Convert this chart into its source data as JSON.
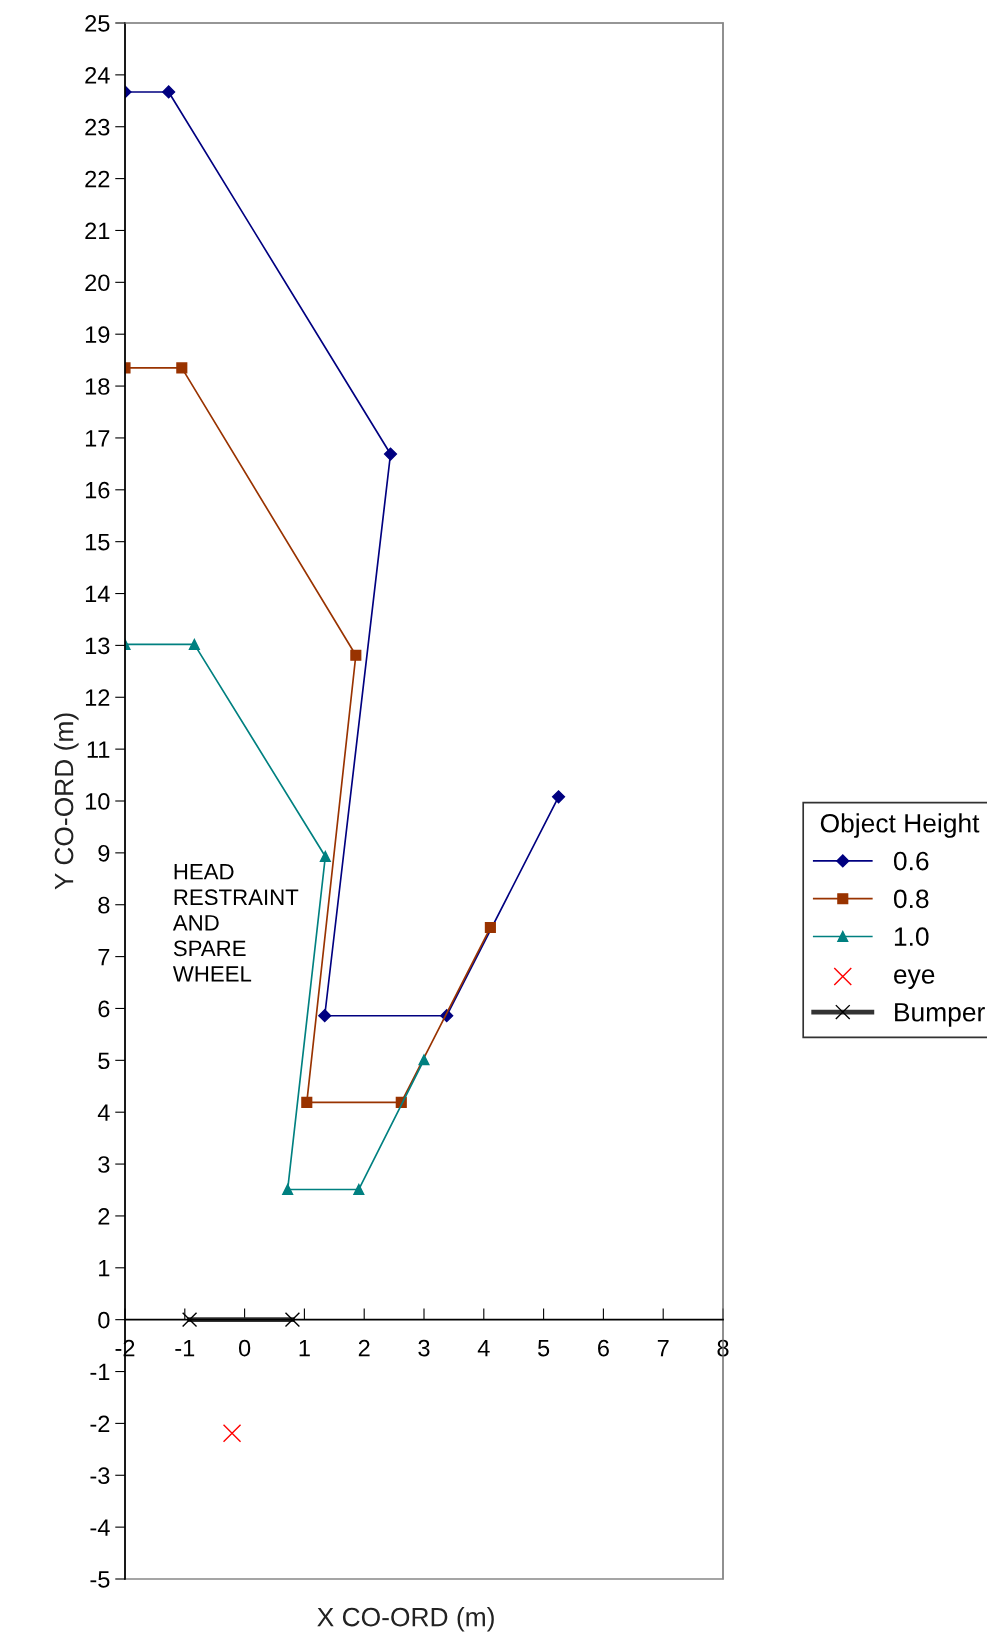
{
  "chart_data": {
    "type": "line",
    "xlabel": "X CO-ORD (m)",
    "ylabel": "Y CO-ORD (m)",
    "legend_title": "Object Height",
    "legend": "right",
    "xlim": [
      -2,
      8
    ],
    "xticks": [
      -2,
      -1,
      0,
      1,
      2,
      3,
      4,
      5,
      6,
      7,
      8
    ],
    "ylim": [
      -5,
      25
    ],
    "yticks": [
      -5,
      -4,
      -3,
      -2,
      -1,
      0,
      1,
      2,
      3,
      4,
      5,
      6,
      7,
      8,
      9,
      10,
      11,
      12,
      13,
      14,
      15,
      16,
      17,
      18,
      19,
      20,
      21,
      22,
      23,
      24,
      25
    ],
    "grid": false,
    "annotations": [
      "HEAD\nRESTRAINT\nAND\nSPARE\nWHEEL"
    ],
    "series": [
      {
        "name": "0.6",
        "color": "#000080",
        "marker": "diamond",
        "x": [
          -2,
          -1.27,
          2.44,
          1.34,
          3.38,
          5.25
        ],
        "values": [
          23.67,
          23.67,
          16.69,
          5.86,
          5.86,
          10.08
        ]
      },
      {
        "name": "0.8",
        "color": "#993300",
        "marker": "square",
        "x": [
          -2,
          -1.05,
          1.86,
          1.04,
          2.62,
          4.11
        ],
        "values": [
          18.35,
          18.35,
          12.81,
          4.19,
          4.19,
          7.56
        ]
      },
      {
        "name": "1.0",
        "color": "#008080",
        "marker": "triangle",
        "x": [
          -2,
          -0.84,
          1.35,
          0.72,
          1.91,
          3.0
        ],
        "values": [
          13.02,
          13.02,
          8.93,
          2.51,
          2.51,
          5.01
        ]
      },
      {
        "name": "eye",
        "type": "scatter",
        "color": "#ff0000",
        "marker": "cross",
        "x": [
          -0.21
        ],
        "values": [
          -2.19
        ]
      },
      {
        "name": "Bumper",
        "color": "#333333",
        "marker": "cross",
        "x": [
          -0.92,
          0.8
        ],
        "values": [
          0,
          0
        ]
      }
    ]
  }
}
